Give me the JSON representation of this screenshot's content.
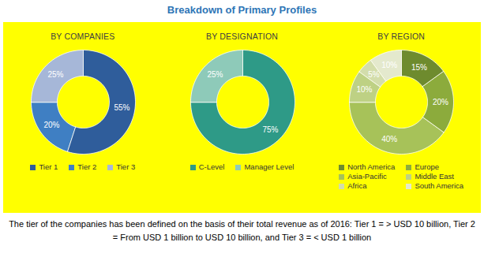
{
  "title": "Breakdown of Primary Profiles",
  "chart_data": [
    {
      "type": "pie",
      "title": "BY COMPANIES",
      "categories": [
        "Tier 1",
        "Tier 2",
        "Tier 3"
      ],
      "values": [
        55,
        20,
        25
      ],
      "value_labels": [
        "55%",
        "20%",
        "25%"
      ],
      "colors": [
        "#2f5d9b",
        "#3f7fc3",
        "#a6b7d8"
      ],
      "data_labels": true
    },
    {
      "type": "pie",
      "title": "BY DESIGNATION",
      "categories": [
        "C-Level",
        "Manager Level"
      ],
      "values": [
        75,
        25
      ],
      "value_labels": [
        "75%",
        "25%"
      ],
      "colors": [
        "#2e9a87",
        "#8ecab9"
      ],
      "data_labels": true
    },
    {
      "type": "pie",
      "title": "BY REGION",
      "categories": [
        "North America",
        "Europe",
        "Asia-Pacific",
        "Middle East",
        "Africa",
        "South America"
      ],
      "values": [
        15,
        20,
        40,
        10,
        5,
        10
      ],
      "value_labels": [
        "15%",
        "20%",
        "40%",
        "10%",
        "5%",
        "10%"
      ],
      "colors": [
        "#6e8b2e",
        "#8cab3c",
        "#a7c259",
        "#bed184",
        "#d3ddab",
        "#e4e9cd"
      ],
      "data_labels": true
    }
  ],
  "footnote": "The tier of the companies has been defined on the basis of their total revenue as of 2016: Tier 1 = > USD 10 billion, Tier 2 = From USD 1 billion to USD 10 billion, and Tier 3 = < USD 1 billion"
}
